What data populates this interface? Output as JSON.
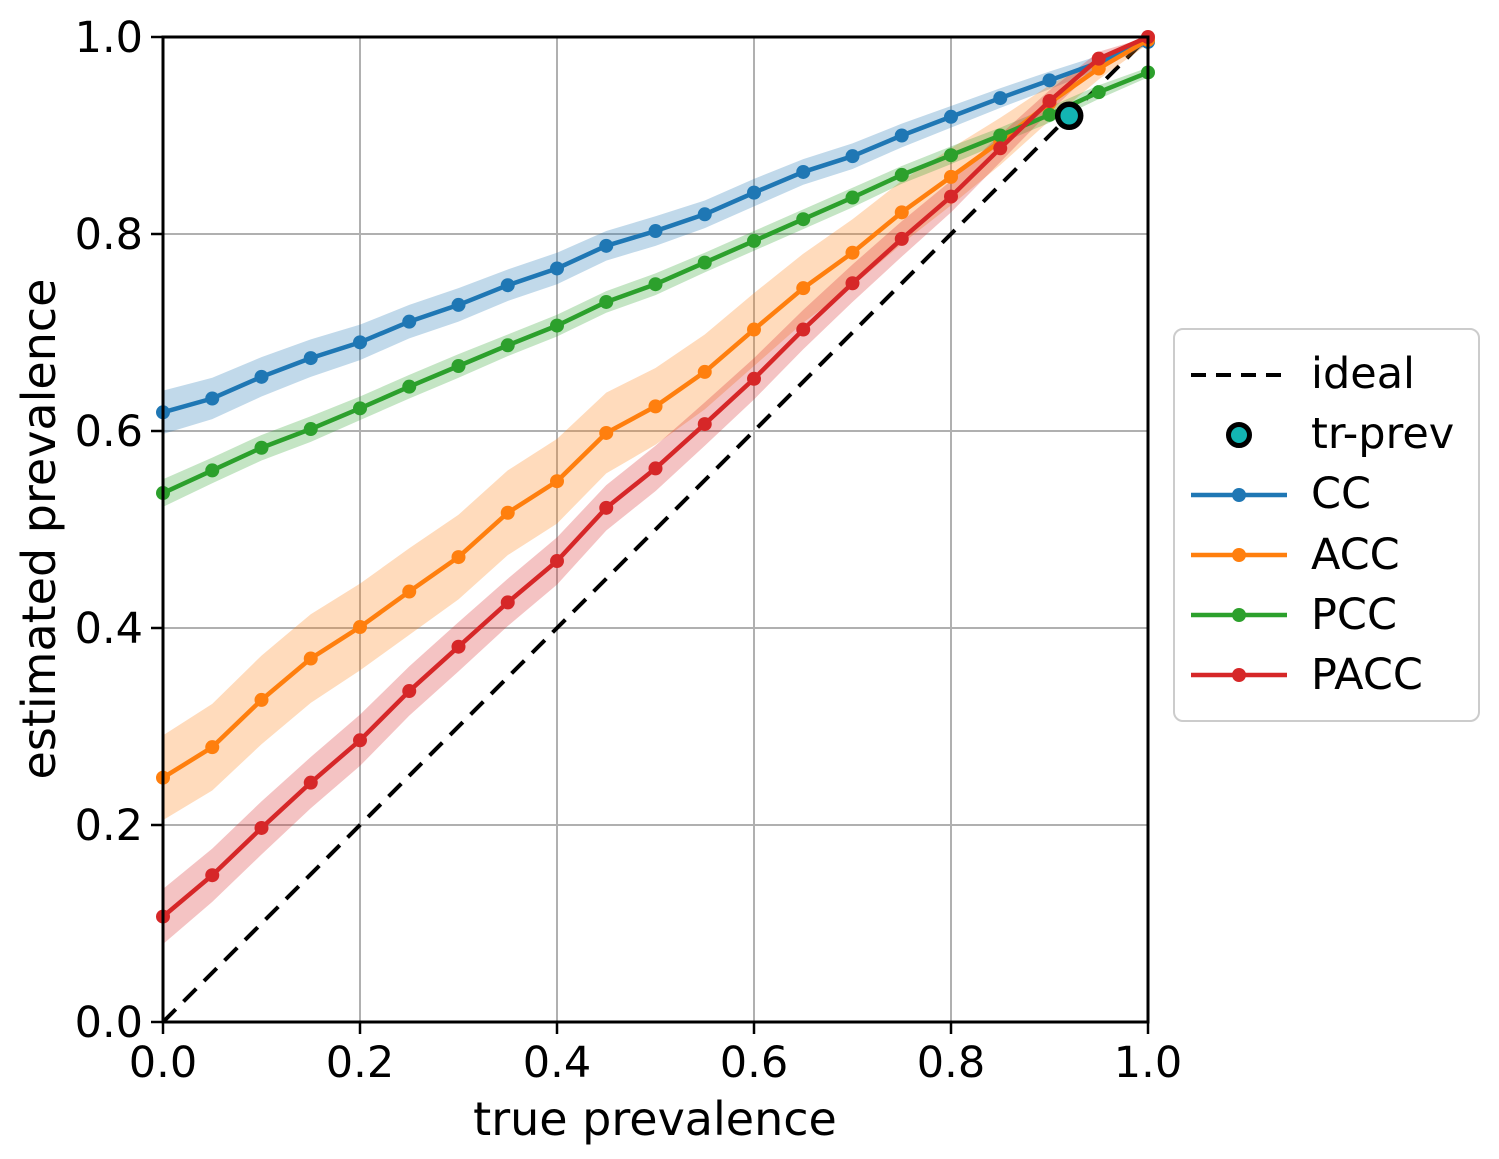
{
  "chart_data": {
    "type": "line",
    "title": "",
    "xlabel": "true prevalence",
    "ylabel": "estimated prevalence",
    "xlim": [
      0.0,
      1.0
    ],
    "ylim": [
      0.0,
      1.0
    ],
    "xticks": [
      0.0,
      0.2,
      0.4,
      0.6,
      0.8,
      1.0
    ],
    "yticks": [
      0.0,
      0.2,
      0.4,
      0.6,
      0.8,
      1.0
    ],
    "grid": true,
    "grid_color": "#b0b0b0",
    "x": [
      0.0,
      0.05,
      0.1,
      0.15,
      0.2,
      0.25,
      0.3,
      0.35,
      0.4,
      0.45,
      0.5,
      0.55,
      0.6,
      0.65,
      0.7,
      0.75,
      0.8,
      0.85,
      0.9,
      0.95,
      1.0
    ],
    "series": [
      {
        "name": "CC",
        "color": "#1f77b4",
        "values": [
          0.619,
          0.633,
          0.655,
          0.674,
          0.69,
          0.711,
          0.728,
          0.748,
          0.765,
          0.788,
          0.803,
          0.82,
          0.842,
          0.863,
          0.879,
          0.9,
          0.919,
          0.938,
          0.956,
          0.974,
          0.995
        ],
        "band_halfwidth": [
          0.022,
          0.021,
          0.02,
          0.019,
          0.018,
          0.017,
          0.017,
          0.016,
          0.016,
          0.015,
          0.015,
          0.014,
          0.014,
          0.013,
          0.013,
          0.012,
          0.011,
          0.01,
          0.009,
          0.007,
          0.003
        ]
      },
      {
        "name": "ACC",
        "color": "#ff7f0e",
        "values": [
          0.248,
          0.279,
          0.327,
          0.369,
          0.401,
          0.437,
          0.472,
          0.517,
          0.549,
          0.598,
          0.625,
          0.66,
          0.703,
          0.745,
          0.781,
          0.822,
          0.858,
          0.894,
          0.933,
          0.968,
          0.997
        ],
        "band_halfwidth": [
          0.043,
          0.044,
          0.045,
          0.045,
          0.044,
          0.044,
          0.043,
          0.043,
          0.043,
          0.041,
          0.039,
          0.038,
          0.037,
          0.035,
          0.034,
          0.032,
          0.029,
          0.024,
          0.018,
          0.011,
          0.004
        ]
      },
      {
        "name": "PCC",
        "color": "#2ca02c",
        "values": [
          0.537,
          0.56,
          0.583,
          0.602,
          0.623,
          0.645,
          0.666,
          0.687,
          0.707,
          0.731,
          0.749,
          0.771,
          0.793,
          0.815,
          0.837,
          0.86,
          0.88,
          0.9,
          0.921,
          0.944,
          0.964
        ],
        "band_halfwidth": [
          0.014,
          0.013,
          0.013,
          0.013,
          0.012,
          0.012,
          0.012,
          0.011,
          0.011,
          0.011,
          0.011,
          0.01,
          0.01,
          0.01,
          0.01,
          0.009,
          0.009,
          0.008,
          0.008,
          0.007,
          0.005
        ]
      },
      {
        "name": "PACC",
        "color": "#d62728",
        "values": [
          0.107,
          0.149,
          0.197,
          0.243,
          0.286,
          0.336,
          0.381,
          0.426,
          0.468,
          0.522,
          0.562,
          0.607,
          0.653,
          0.703,
          0.75,
          0.795,
          0.838,
          0.887,
          0.935,
          0.978,
          1.0
        ],
        "band_halfwidth": [
          0.028,
          0.027,
          0.027,
          0.026,
          0.026,
          0.025,
          0.025,
          0.024,
          0.024,
          0.023,
          0.023,
          0.022,
          0.021,
          0.02,
          0.019,
          0.018,
          0.016,
          0.014,
          0.011,
          0.007,
          0.002
        ]
      }
    ],
    "band_opacity": 0.28,
    "ideal": {
      "label": "ideal",
      "color": "#000000",
      "style": "dashed",
      "from": [
        0.0,
        0.0
      ],
      "to": [
        1.0,
        1.0
      ]
    },
    "tr_prev": {
      "label": "tr-prev",
      "x": 0.92,
      "y": 0.92,
      "color": "#13b5b3",
      "edge_color": "#000000"
    },
    "legend": {
      "position": "right",
      "items": [
        "ideal",
        "tr-prev",
        "CC",
        "ACC",
        "PCC",
        "PACC"
      ]
    }
  }
}
